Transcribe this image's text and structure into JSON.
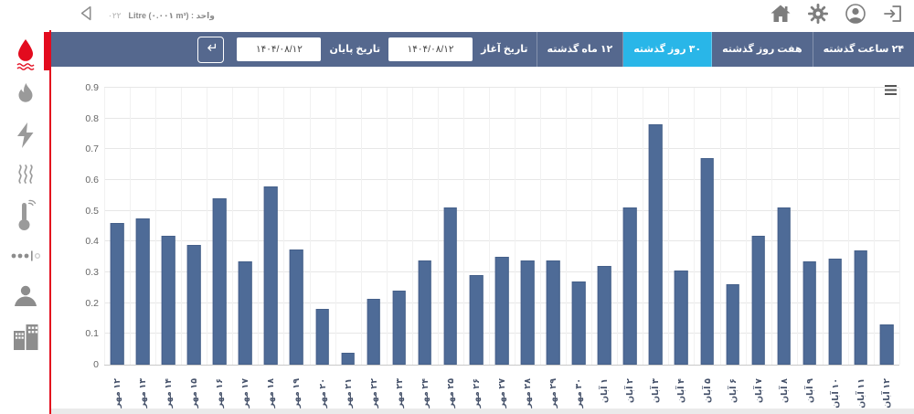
{
  "topbar": {
    "back_icon": "back-triangle-icon",
    "device_code": "۰۲۲",
    "unit_label": "Litre (۰.۰۰۱ m³) : واحد",
    "icons": [
      "home-icon",
      "settings-gear-icon",
      "user-account-icon",
      "sign-out-icon"
    ]
  },
  "toolbar": {
    "range_buttons": [
      {
        "label": "۲۴ ساعت گذشته",
        "active": false
      },
      {
        "label": "هفت روز گذشته",
        "active": false
      },
      {
        "label": "۳۰ روز گذشته",
        "active": true
      },
      {
        "label": "۱۲ ماه گذشته",
        "active": false
      }
    ],
    "start_date": {
      "label": "تاریخ آغاز",
      "value": "۱۴۰۴/۰۸/۱۲"
    },
    "end_date": {
      "label": "تاریخ پایان",
      "value": "۱۴۰۴/۰۸/۱۲"
    },
    "submit_icon": "enter-arrow-icon",
    "colors": {
      "bar_bg": "#55688e",
      "active_bg": "#29b6e8"
    }
  },
  "sidebar": {
    "accent_color": "#e30b1e",
    "items": [
      "water-meter",
      "gas-flame-meter",
      "electricity-meter",
      "heat-meter",
      "temperature-sensor",
      "counter-meter",
      "user",
      "buildings"
    ],
    "active_item": "water-meter"
  },
  "chart_data": {
    "type": "bar",
    "title": "",
    "xlabel": "",
    "ylabel": "",
    "categories": [
      "۱۲ مهر",
      "۱۳ مهر",
      "۱۴ مهر",
      "۱۵ مهر",
      "۱۶ مهر",
      "۱۷ مهر",
      "۱۸ مهر",
      "۱۹ مهر",
      "۲۰ مهر",
      "۲۱ مهر",
      "۲۲ مهر",
      "۲۳ مهر",
      "۲۴ مهر",
      "۲۵ مهر",
      "۲۶ مهر",
      "۲۷ مهر",
      "۲۸ مهر",
      "۲۹ مهر",
      "۳۰ مهر",
      "۱ آبان",
      "۲ آبان",
      "۳ آبان",
      "۴ آبان",
      "۵ آبان",
      "۶ آبان",
      "۷ آبان",
      "۸ آبان",
      "۹ آبان",
      "۱۰ آبان",
      "۱۱ آبان",
      "۱۲ آبان"
    ],
    "values": [
      0.46,
      0.475,
      0.42,
      0.39,
      0.54,
      0.335,
      0.58,
      0.375,
      0.18,
      0.04,
      0.215,
      0.24,
      0.34,
      0.51,
      0.29,
      0.35,
      0.34,
      0.34,
      0.27,
      0.32,
      0.51,
      0.78,
      0.305,
      0.67,
      0.26,
      0.42,
      0.51,
      0.335,
      0.345,
      0.37,
      0.13
    ],
    "ylim": [
      0,
      0.9
    ],
    "ytick_step": 0.1,
    "bar_color": "#4e6b97",
    "grid": true,
    "x_label_rotation": -90,
    "legend": "none",
    "menu_icon": "hamburger-icon"
  }
}
